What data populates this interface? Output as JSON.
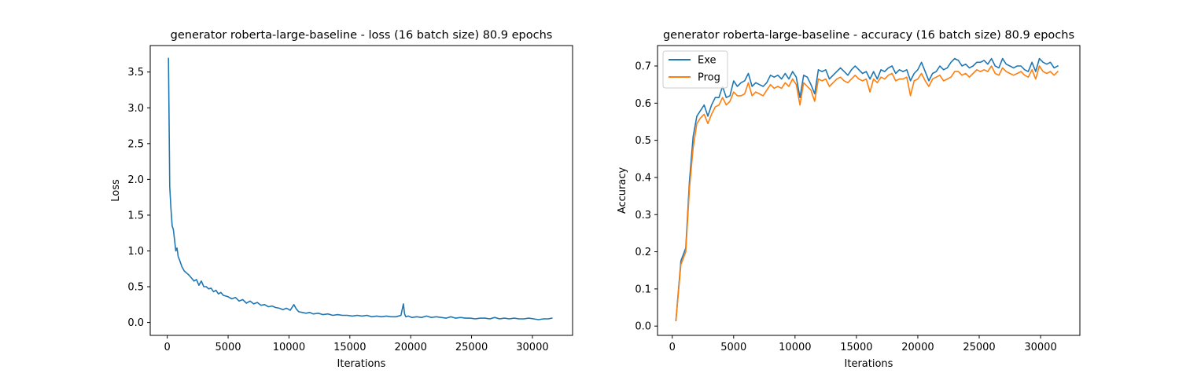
{
  "chart_data": [
    {
      "type": "line",
      "title": "generator roberta-large-baseline - loss (16 batch size) 80.9 epochs",
      "xlabel": "Iterations",
      "ylabel": "Loss",
      "xlim": [
        -1400,
        33300
      ],
      "ylim": [
        -0.18,
        3.87
      ],
      "xticks": [
        0,
        5000,
        10000,
        15000,
        20000,
        25000,
        30000
      ],
      "xtick_labels": [
        "0",
        "5000",
        "10000",
        "15000",
        "20000",
        "25000",
        "30000"
      ],
      "yticks": [
        0.0,
        0.5,
        1.0,
        1.5,
        2.0,
        2.5,
        3.0,
        3.5
      ],
      "ytick_labels": [
        "0.0",
        "0.5",
        "1.0",
        "1.5",
        "2.0",
        "2.5",
        "3.0",
        "3.5"
      ],
      "grid": false,
      "series": [
        {
          "color": "#1f77b4",
          "x": [
            100,
            200,
            300,
            400,
            500,
            600,
            700,
            800,
            900,
            1000,
            1200,
            1400,
            1600,
            1800,
            2000,
            2200,
            2400,
            2600,
            2800,
            3000,
            3200,
            3400,
            3600,
            3800,
            4000,
            4200,
            4400,
            4600,
            4800,
            5000,
            5300,
            5600,
            5900,
            6200,
            6500,
            6800,
            7100,
            7400,
            7700,
            8000,
            8300,
            8600,
            8900,
            9200,
            9500,
            9800,
            10100,
            10400,
            10600,
            10800,
            11100,
            11400,
            11700,
            12000,
            12400,
            12800,
            13200,
            13600,
            14000,
            14400,
            14800,
            15200,
            15600,
            16000,
            16400,
            16800,
            17200,
            17600,
            18000,
            18400,
            18800,
            19200,
            19400,
            19500,
            19600,
            19800,
            20100,
            20500,
            20900,
            21300,
            21700,
            22100,
            22500,
            22900,
            23300,
            23700,
            24100,
            24500,
            24900,
            25300,
            25700,
            26100,
            26500,
            26900,
            27300,
            27700,
            28100,
            28500,
            28900,
            29300,
            29700,
            30100,
            30500,
            30900,
            31300,
            31600
          ],
          "y": [
            3.69,
            1.9,
            1.6,
            1.35,
            1.3,
            1.15,
            1.0,
            1.04,
            0.92,
            0.88,
            0.78,
            0.72,
            0.69,
            0.66,
            0.62,
            0.58,
            0.6,
            0.52,
            0.58,
            0.5,
            0.5,
            0.47,
            0.48,
            0.43,
            0.45,
            0.4,
            0.42,
            0.38,
            0.37,
            0.36,
            0.33,
            0.35,
            0.3,
            0.32,
            0.27,
            0.3,
            0.26,
            0.28,
            0.24,
            0.25,
            0.22,
            0.23,
            0.21,
            0.2,
            0.18,
            0.2,
            0.17,
            0.25,
            0.19,
            0.15,
            0.14,
            0.13,
            0.14,
            0.12,
            0.13,
            0.11,
            0.12,
            0.1,
            0.11,
            0.1,
            0.1,
            0.09,
            0.1,
            0.09,
            0.1,
            0.08,
            0.09,
            0.08,
            0.09,
            0.08,
            0.08,
            0.1,
            0.26,
            0.12,
            0.08,
            0.09,
            0.07,
            0.08,
            0.07,
            0.09,
            0.07,
            0.08,
            0.07,
            0.06,
            0.08,
            0.06,
            0.07,
            0.06,
            0.06,
            0.05,
            0.06,
            0.06,
            0.05,
            0.07,
            0.05,
            0.06,
            0.05,
            0.06,
            0.05,
            0.05,
            0.06,
            0.05,
            0.04,
            0.05,
            0.05,
            0.06
          ]
        }
      ]
    },
    {
      "type": "line",
      "title": "generator roberta-large-baseline - accuracy (16 batch size) 80.9 epochs",
      "xlabel": "Iterations",
      "ylabel": "Accuracy",
      "xlim": [
        -1200,
        33200
      ],
      "ylim": [
        -0.025,
        0.755
      ],
      "xticks": [
        0,
        5000,
        10000,
        15000,
        20000,
        25000,
        30000
      ],
      "xtick_labels": [
        "0",
        "5000",
        "10000",
        "15000",
        "20000",
        "25000",
        "30000"
      ],
      "yticks": [
        0.0,
        0.1,
        0.2,
        0.3,
        0.4,
        0.5,
        0.6,
        0.7
      ],
      "ytick_labels": [
        "0.0",
        "0.1",
        "0.2",
        "0.3",
        "0.4",
        "0.5",
        "0.6",
        "0.7"
      ],
      "grid": false,
      "legend_position": "top-left",
      "x": [
        300,
        700,
        1100,
        1400,
        1700,
        2000,
        2300,
        2600,
        2900,
        3200,
        3500,
        3800,
        4100,
        4400,
        4700,
        5000,
        5300,
        5600,
        5900,
        6200,
        6500,
        6800,
        7100,
        7400,
        7700,
        8000,
        8300,
        8600,
        8900,
        9200,
        9500,
        9800,
        10100,
        10400,
        10700,
        11000,
        11300,
        11600,
        11900,
        12200,
        12500,
        12800,
        13100,
        13400,
        13700,
        14000,
        14300,
        14600,
        14900,
        15200,
        15500,
        15800,
        16100,
        16400,
        16700,
        17000,
        17300,
        17600,
        17900,
        18200,
        18500,
        18800,
        19100,
        19400,
        19700,
        20000,
        20300,
        20600,
        20900,
        21200,
        21500,
        21800,
        22100,
        22400,
        22700,
        23000,
        23300,
        23600,
        23900,
        24200,
        24500,
        24800,
        25100,
        25400,
        25700,
        26000,
        26300,
        26600,
        26900,
        27200,
        27500,
        27800,
        28100,
        28400,
        28700,
        29000,
        29300,
        29600,
        29900,
        30200,
        30500,
        30800,
        31100,
        31400
      ],
      "series": [
        {
          "name": "Exe",
          "color": "#1f77b4",
          "y": [
            0.015,
            0.175,
            0.21,
            0.39,
            0.51,
            0.565,
            0.58,
            0.595,
            0.565,
            0.595,
            0.615,
            0.615,
            0.645,
            0.615,
            0.62,
            0.66,
            0.645,
            0.655,
            0.66,
            0.68,
            0.645,
            0.655,
            0.65,
            0.645,
            0.655,
            0.675,
            0.67,
            0.675,
            0.665,
            0.68,
            0.665,
            0.685,
            0.67,
            0.615,
            0.675,
            0.67,
            0.65,
            0.625,
            0.69,
            0.685,
            0.69,
            0.665,
            0.675,
            0.685,
            0.695,
            0.685,
            0.675,
            0.69,
            0.7,
            0.69,
            0.68,
            0.685,
            0.665,
            0.685,
            0.665,
            0.69,
            0.685,
            0.695,
            0.7,
            0.68,
            0.69,
            0.685,
            0.69,
            0.66,
            0.68,
            0.69,
            0.71,
            0.685,
            0.66,
            0.68,
            0.685,
            0.7,
            0.69,
            0.695,
            0.71,
            0.72,
            0.715,
            0.7,
            0.705,
            0.695,
            0.7,
            0.71,
            0.71,
            0.715,
            0.705,
            0.72,
            0.7,
            0.695,
            0.72,
            0.705,
            0.7,
            0.695,
            0.7,
            0.7,
            0.69,
            0.685,
            0.71,
            0.685,
            0.72,
            0.71,
            0.705,
            0.71,
            0.695,
            0.7
          ]
        },
        {
          "name": "Prog",
          "color": "#ff7f0e",
          "y": [
            0.015,
            0.165,
            0.2,
            0.37,
            0.48,
            0.545,
            0.56,
            0.57,
            0.545,
            0.57,
            0.59,
            0.595,
            0.615,
            0.595,
            0.605,
            0.63,
            0.62,
            0.62,
            0.625,
            0.655,
            0.62,
            0.63,
            0.625,
            0.62,
            0.635,
            0.65,
            0.64,
            0.645,
            0.64,
            0.655,
            0.645,
            0.665,
            0.65,
            0.595,
            0.655,
            0.645,
            0.635,
            0.605,
            0.665,
            0.66,
            0.665,
            0.645,
            0.655,
            0.665,
            0.67,
            0.66,
            0.655,
            0.665,
            0.675,
            0.665,
            0.66,
            0.665,
            0.63,
            0.665,
            0.655,
            0.67,
            0.665,
            0.675,
            0.68,
            0.66,
            0.665,
            0.665,
            0.67,
            0.62,
            0.66,
            0.665,
            0.68,
            0.66,
            0.645,
            0.665,
            0.67,
            0.675,
            0.66,
            0.665,
            0.67,
            0.685,
            0.685,
            0.675,
            0.68,
            0.67,
            0.68,
            0.69,
            0.685,
            0.69,
            0.685,
            0.7,
            0.68,
            0.675,
            0.695,
            0.685,
            0.68,
            0.675,
            0.68,
            0.685,
            0.675,
            0.67,
            0.69,
            0.665,
            0.7,
            0.685,
            0.68,
            0.685,
            0.675,
            0.685
          ]
        }
      ]
    }
  ]
}
